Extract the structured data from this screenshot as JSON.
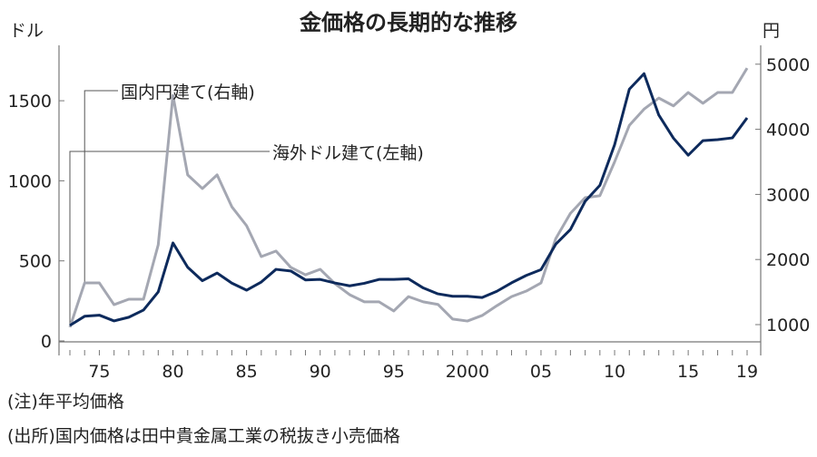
{
  "chart_data": {
    "type": "line",
    "title": "金価格の長期的な推移",
    "left_unit": "ドル",
    "right_unit": "円",
    "x": [
      1973,
      1974,
      1975,
      1976,
      1977,
      1978,
      1979,
      1980,
      1981,
      1982,
      1983,
      1984,
      1985,
      1986,
      1987,
      1988,
      1989,
      1990,
      1991,
      1992,
      1993,
      1994,
      1995,
      1996,
      1997,
      1998,
      1999,
      2000,
      2001,
      2002,
      2003,
      2004,
      2005,
      2006,
      2007,
      2008,
      2009,
      2010,
      2011,
      2012,
      2013,
      2014,
      2015,
      2016,
      2017,
      2018,
      2019
    ],
    "xlim": [
      1973,
      2019
    ],
    "x_ticks": [
      {
        "value": 1975,
        "label": "75"
      },
      {
        "value": 1980,
        "label": "80"
      },
      {
        "value": 1985,
        "label": "85"
      },
      {
        "value": 1990,
        "label": "90"
      },
      {
        "value": 1995,
        "label": "95"
      },
      {
        "value": 2000,
        "label": "2000"
      },
      {
        "value": 2005,
        "label": "05"
      },
      {
        "value": 2010,
        "label": "10"
      },
      {
        "value": 2015,
        "label": "15"
      },
      {
        "value": 2019,
        "label": "19"
      }
    ],
    "y_left": {
      "lim": [
        0,
        1700
      ],
      "ticks": [
        0,
        500,
        1000,
        1500
      ],
      "labels": [
        "0",
        "500",
        "1000",
        "1500"
      ]
    },
    "y_right": {
      "lim": [
        800,
        5250
      ],
      "ticks": [
        1000,
        2000,
        3000,
        4000,
        5000
      ],
      "labels": [
        "1000",
        "2000",
        "3000",
        "4000",
        "5000"
      ]
    },
    "grid": false,
    "series": [
      {
        "name": "海外ドル建て(左軸)",
        "axis": "left",
        "color": "#0d2a5c",
        "values": [
          97,
          154,
          161,
          125,
          148,
          193,
          306,
          612,
          460,
          376,
          424,
          361,
          317,
          368,
          447,
          437,
          381,
          384,
          362,
          344,
          360,
          384,
          384,
          388,
          331,
          294,
          279,
          279,
          271,
          310,
          363,
          409,
          445,
          604,
          696,
          872,
          972,
          1225,
          1572,
          1669,
          1411,
          1266,
          1160,
          1251,
          1257,
          1268,
          1393
        ]
      },
      {
        "name": "国内円建て(右軸)",
        "axis": "right",
        "color": "#a4a7b2",
        "values": [
          960,
          1640,
          1640,
          1306,
          1390,
          1390,
          2225,
          4520,
          3300,
          3090,
          3300,
          2810,
          2520,
          2045,
          2130,
          1880,
          1765,
          1850,
          1630,
          1460,
          1350,
          1350,
          1210,
          1430,
          1350,
          1310,
          1085,
          1055,
          1140,
          1290,
          1430,
          1515,
          1640,
          2320,
          2710,
          2950,
          2980,
          3500,
          4060,
          4310,
          4480,
          4360,
          4565,
          4400,
          4565,
          4565,
          4940
        ]
      }
    ]
  },
  "notes": {
    "note1": "(注)年平均価格",
    "note2": "(出所)国内価格は田中貴金属工業の税抜き小売価格"
  }
}
